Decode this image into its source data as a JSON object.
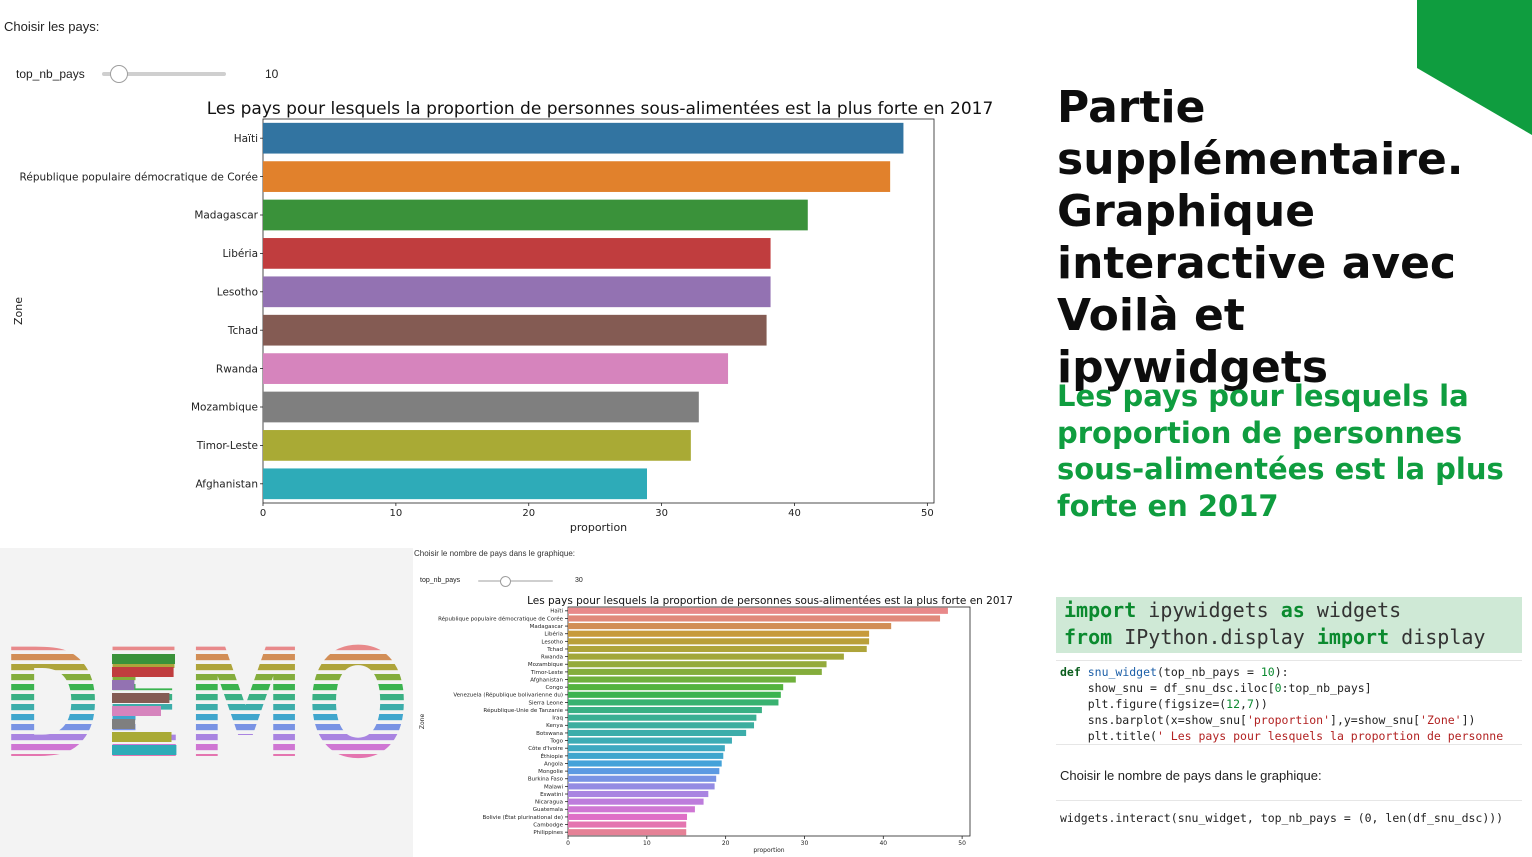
{
  "top_widget": {
    "label": "Choisir les pays:",
    "slider_label": "top_nb_pays",
    "slider_value": "10",
    "slider_min": 0,
    "slider_max": 100,
    "slider_position": 10
  },
  "chart_data": [
    {
      "type": "bar",
      "orientation": "horizontal",
      "title": "Les pays pour lesquels la proportion de personnes sous-alimentées est la plus forte en 2017",
      "xlabel": "proportion",
      "ylabel": "Zone",
      "xlim": [
        0,
        50.5
      ],
      "xticks": [
        0,
        10,
        20,
        30,
        40,
        50
      ],
      "categories": [
        "Haïti",
        "République populaire démocratique de Corée",
        "Madagascar",
        "Libéria",
        "Lesotho",
        "Tchad",
        "Rwanda",
        "Mozambique",
        "Timor-Leste",
        "Afghanistan"
      ],
      "values": [
        48.2,
        47.2,
        41.0,
        38.2,
        38.2,
        37.9,
        35.0,
        32.8,
        32.2,
        28.9
      ],
      "colors": [
        "#3274a1",
        "#e1812c",
        "#3a923a",
        "#c03d3e",
        "#9372b2",
        "#845b53",
        "#d684bd",
        "#7f7f7f",
        "#a9aa35",
        "#2eabb8"
      ]
    },
    {
      "type": "bar",
      "orientation": "horizontal",
      "title": "Les pays pour lesquels la proportion de personnes sous-alimentées est la plus forte en 2017",
      "xlabel": "proportion",
      "ylabel": "Zone",
      "xlim": [
        0,
        51
      ],
      "xticks": [
        0,
        10,
        20,
        30,
        40,
        50
      ],
      "categories": [
        "Haïti",
        "République populaire démocratique de Corée",
        "Madagascar",
        "Libéria",
        "Lesotho",
        "Tchad",
        "Rwanda",
        "Mozambique",
        "Timor-Leste",
        "Afghanistan",
        "Congo",
        "Venezuela (République bolivarienne du)",
        "Sierra Leone",
        "République-Unie de Tanzanie",
        "Iraq",
        "Kenya",
        "Botswana",
        "Togo",
        "Côte d'Ivoire",
        "Éthiopie",
        "Angola",
        "Mongolie",
        "Burkina Faso",
        "Malawi",
        "Eswatini",
        "Nicaragua",
        "Guatemala",
        "Bolivie (État plurinational de)",
        "Cambodge",
        "Philippines"
      ],
      "values": [
        48.2,
        47.2,
        41.0,
        38.2,
        38.2,
        37.9,
        35.0,
        32.8,
        32.2,
        28.9,
        27.3,
        27.0,
        26.7,
        24.6,
        23.9,
        23.6,
        22.6,
        20.8,
        19.9,
        19.7,
        19.5,
        19.2,
        18.8,
        18.6,
        17.8,
        17.2,
        16.1,
        15.1,
        15.0,
        15.0
      ],
      "colors": [
        "#e8898a",
        "#e0897b",
        "#d28e56",
        "#c79a3b",
        "#b99f39",
        "#aea43a",
        "#a2a73a",
        "#94aa3b",
        "#84ad3c",
        "#6fb03c",
        "#54b33d",
        "#3bb34f",
        "#39b270",
        "#3ab084",
        "#3baf93",
        "#3cae9f",
        "#3cadaa",
        "#3dacb5",
        "#3ea9c1",
        "#40a6cd",
        "#44a2d9",
        "#5c9ae2",
        "#7993e4",
        "#948be3",
        "#a984e1",
        "#bd7cdc",
        "#cf76d3",
        "#df6fc7",
        "#e475b0",
        "#e58196"
      ]
    }
  ],
  "second_widget": {
    "label": "Choisir le nombre de pays dans le graphique:",
    "slider_label": "top_nb_pays",
    "slider_value": "30",
    "slider_min": 0,
    "slider_max": 100,
    "slider_position": 30
  },
  "demo": {
    "word": "DEMO",
    "letters": [
      "D",
      "E",
      "M",
      "O"
    ],
    "stripe_colors": [
      "#e8898a",
      "#d28e56",
      "#aea43a",
      "#84ad3c",
      "#3bb34f",
      "#3ab084",
      "#3cadaa",
      "#40a6cd",
      "#7993e4",
      "#a984e1",
      "#cf76d3",
      "#e475b0"
    ],
    "e_bar_colors": [
      "#3a923a",
      "#c03d3e",
      "#9372b2",
      "#845b53",
      "#d684bd",
      "#7f7f7f",
      "#a9aa35",
      "#2eabb8"
    ],
    "e_bar_values": [
      0.9,
      0.88,
      0.32,
      0.82,
      0.7,
      0.33,
      0.85,
      0.92
    ]
  },
  "right": {
    "title": "Partie supplémentaire. Graphique interactive avec Voilà et ipywidgets",
    "subtitle": "Les pays pour lesquels la proportion de personnes sous-alimentées est la plus forte en 2017",
    "accent_color": "#0f9d3f",
    "import_line1_kw1": "import",
    "import_line1_rest1": " ipywidgets ",
    "import_line1_kw2": "as",
    "import_line1_rest2": " widgets",
    "import_line2_kw1": "from",
    "import_line2_rest1": " IPython.display ",
    "import_line2_kw2": "import",
    "import_line2_rest2": " display",
    "output_text": "Choisir le nombre de pays dans le graphique:",
    "call_code": "widgets.interact(snu_widget, top_nb_pays = (0, len(df_snu_dsc)))"
  }
}
